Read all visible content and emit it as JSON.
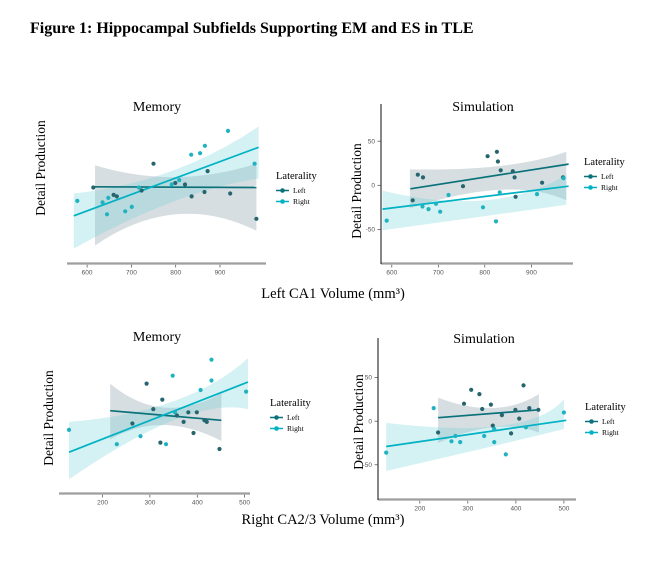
{
  "figure_title": "Figure 1: Hippocampal Subfields Supporting EM and ES in TLE",
  "xlabels": [
    "Left CA1 Volume (mm³)",
    "Right CA2/3 Volume (mm³)"
  ],
  "legend": {
    "title": "Laterality",
    "items": [
      {
        "label": "Left",
        "color": "#0b727b"
      },
      {
        "label": "Right",
        "color": "#00b2c4"
      }
    ]
  },
  "colors": {
    "x_axis_line": "#9e9e9e",
    "y_axis_line": "#222222",
    "tick_label": "#555555",
    "left_point": "#26656e",
    "left_line": "#0b727b",
    "left_band": "#7f98a1",
    "right_point": "#1fb2c1",
    "right_line": "#00b2c4",
    "right_band": "#7ad2da"
  },
  "chart_data": [
    {
      "type": "scatter",
      "title": "Memory",
      "ylabel": "Detail Production",
      "x_variable": "Left CA1 Volume (mm³)",
      "xlim": [
        557,
        997
      ],
      "ylim": [
        0,
        100
      ],
      "x_ticks": [
        600,
        700,
        800,
        900
      ],
      "y_ticks": [],
      "series": [
        {
          "name": "Left",
          "point_color": "#26656e",
          "line_color": "#0b727b",
          "band_color": "#7f98a1",
          "band_opacity": 0.32,
          "points": [
            [
              614,
              50
            ],
            [
              660,
              45
            ],
            [
              667,
              44
            ],
            [
              723,
              48
            ],
            [
              750,
              66
            ],
            [
              799,
              53
            ],
            [
              821,
              52
            ],
            [
              836,
              44
            ],
            [
              865,
              47
            ],
            [
              872,
              61
            ],
            [
              923,
              46
            ],
            [
              982,
              29
            ]
          ],
          "trend": [
            [
              614,
              50.5
            ],
            [
              982,
              50
            ]
          ],
          "band": [
            [
              618,
              65
            ],
            [
              799,
              57
            ],
            [
              982,
              66
            ],
            [
              982,
              21
            ],
            [
              799,
              32
            ],
            [
              618,
              11
            ]
          ]
        },
        {
          "name": "Right",
          "point_color": "#1fb2c1",
          "line_color": "#00b2c4",
          "band_color": "#7ad2da",
          "band_opacity": 0.32,
          "points": [
            [
              578,
              41
            ],
            [
              635,
              40
            ],
            [
              645,
              32
            ],
            [
              648,
              43
            ],
            [
              686,
              34
            ],
            [
              701,
              37
            ],
            [
              717,
              50
            ],
            [
              791,
              52
            ],
            [
              808,
              55
            ],
            [
              835,
              72
            ],
            [
              855,
              73
            ],
            [
              866,
              78
            ],
            [
              918,
              88
            ],
            [
              978,
              66
            ]
          ],
          "trend": [
            [
              570,
              31
            ],
            [
              987,
              77
            ]
          ],
          "band": [
            [
              570,
              46
            ],
            [
              790,
              61
            ],
            [
              987,
              91
            ],
            [
              987,
              56
            ],
            [
              790,
              40
            ],
            [
              570,
              9
            ]
          ]
        }
      ]
    },
    {
      "type": "scatter",
      "title": "Simulation",
      "ylabel": "Detail Production",
      "x_variable": "Left CA1 Volume (mm³)",
      "xlim": [
        579,
        983
      ],
      "ylim": [
        -87,
        82
      ],
      "x_ticks": [
        600,
        700,
        800,
        900
      ],
      "y_ticks": [
        50,
        0,
        -50
      ],
      "series": [
        {
          "name": "Left",
          "point_color": "#26656e",
          "line_color": "#0b727b",
          "band_color": "#7f98a1",
          "band_opacity": 0.32,
          "points": [
            [
              645,
              -17
            ],
            [
              656,
              12
            ],
            [
              667,
              9
            ],
            [
              753,
              -1
            ],
            [
              806,
              33
            ],
            [
              826,
              38
            ],
            [
              828,
              27
            ],
            [
              834,
              17
            ],
            [
              860,
              16
            ],
            [
              864,
              9
            ],
            [
              866,
              -13
            ],
            [
              923,
              3
            ],
            [
              968,
              9
            ]
          ],
          "trend": [
            [
              640,
              -4
            ],
            [
              980,
              24
            ]
          ],
          "band": [
            [
              639,
              18
            ],
            [
              833,
              22
            ],
            [
              975,
              38
            ],
            [
              975,
              -17
            ],
            [
              833,
              -5
            ],
            [
              639,
              -26
            ]
          ]
        },
        {
          "name": "Right",
          "point_color": "#1fb2c1",
          "line_color": "#00b2c4",
          "band_color": "#7ad2da",
          "band_opacity": 0.32,
          "points": [
            [
              589,
              -40
            ],
            [
              666,
              -24
            ],
            [
              679,
              -27
            ],
            [
              695,
              -21
            ],
            [
              704,
              -30
            ],
            [
              722,
              -11
            ],
            [
              796,
              -25
            ],
            [
              824,
              -41
            ],
            [
              832,
              -8
            ],
            [
              912,
              -10
            ],
            [
              969,
              8
            ]
          ],
          "trend": [
            [
              580,
              -27
            ],
            [
              980,
              -1
            ]
          ],
          "band": [
            [
              580,
              -6
            ],
            [
              800,
              -17
            ],
            [
              975,
              12
            ],
            [
              975,
              -22
            ],
            [
              800,
              -35
            ],
            [
              580,
              -51
            ]
          ]
        }
      ]
    },
    {
      "type": "scatter",
      "title": "Memory",
      "ylabel": "Detail Production",
      "x_variable": "Right CA2/3 Volume (mm³)",
      "xlim": [
        110,
        505
      ],
      "ylim": [
        4,
        95
      ],
      "x_ticks": [
        200,
        300,
        400,
        500
      ],
      "y_ticks": [],
      "series": [
        {
          "name": "Left",
          "point_color": "#26656e",
          "line_color": "#0b727b",
          "band_color": "#7f98a1",
          "band_opacity": 0.32,
          "points": [
            [
              263,
              47
            ],
            [
              293,
              72
            ],
            [
              307,
              56
            ],
            [
              322,
              35
            ],
            [
              326,
              62
            ],
            [
              357,
              52
            ],
            [
              371,
              48
            ],
            [
              381,
              54
            ],
            [
              392,
              41
            ],
            [
              399,
              54
            ],
            [
              415,
              49
            ],
            [
              420,
              48
            ],
            [
              447,
              31
            ]
          ],
          "trend": [
            [
              216,
              55
            ],
            [
              451,
              49
            ]
          ],
          "band": [
            [
              216,
              72
            ],
            [
              329,
              57
            ],
            [
              451,
              66
            ],
            [
              451,
              36
            ],
            [
              329,
              46
            ],
            [
              216,
              37
            ]
          ]
        },
        {
          "name": "Right",
          "point_color": "#1fb2c1",
          "line_color": "#00b2c4",
          "band_color": "#7ad2da",
          "band_opacity": 0.32,
          "points": [
            [
              129,
              43
            ],
            [
              230,
              34
            ],
            [
              280,
              39
            ],
            [
              334,
              34
            ],
            [
              348,
              77
            ],
            [
              353,
              54
            ],
            [
              407,
              68
            ],
            [
              430,
              87
            ],
            [
              430,
              74
            ],
            [
              503,
              67
            ]
          ],
          "trend": [
            [
              129,
              29
            ],
            [
              507,
              73
            ]
          ],
          "band": [
            [
              129,
              48
            ],
            [
              350,
              61
            ],
            [
              507,
              88
            ],
            [
              507,
              56
            ],
            [
              350,
              49
            ],
            [
              129,
              12
            ]
          ]
        }
      ]
    },
    {
      "type": "scatter",
      "title": "Simulation",
      "ylabel": "Detail Production",
      "x_variable": "Right CA2/3 Volume (mm³)",
      "xlim": [
        115,
        519
      ],
      "ylim": [
        -88,
        85
      ],
      "x_ticks": [
        200,
        300,
        400,
        500
      ],
      "y_ticks": [
        50,
        0,
        -50
      ],
      "series": [
        {
          "name": "Left",
          "point_color": "#26656e",
          "line_color": "#0b727b",
          "band_color": "#7f98a1",
          "band_opacity": 0.32,
          "points": [
            [
              238,
              -13
            ],
            [
              292,
              20
            ],
            [
              307,
              36
            ],
            [
              324,
              31
            ],
            [
              330,
              14
            ],
            [
              348,
              19
            ],
            [
              352,
              -5
            ],
            [
              371,
              7
            ],
            [
              390,
              -14
            ],
            [
              399,
              13
            ],
            [
              407,
              3
            ],
            [
              416,
              41
            ],
            [
              428,
              15
            ],
            [
              447,
              13
            ]
          ],
          "trend": [
            [
              238,
              4
            ],
            [
              448,
              13
            ]
          ],
          "band": [
            [
              238,
              27
            ],
            [
              352,
              15
            ],
            [
              448,
              31
            ],
            [
              448,
              -13
            ],
            [
              352,
              -7
            ],
            [
              238,
              -25
            ]
          ]
        },
        {
          "name": "Right",
          "point_color": "#1fb2c1",
          "line_color": "#00b2c4",
          "band_color": "#7ad2da",
          "band_opacity": 0.32,
          "points": [
            [
              130,
              -36
            ],
            [
              229,
              15
            ],
            [
              266,
              -23
            ],
            [
              274,
              -17
            ],
            [
              284,
              -24
            ],
            [
              334,
              -17
            ],
            [
              355,
              -9
            ],
            [
              355,
              -24
            ],
            [
              379,
              -38
            ],
            [
              421,
              -7
            ],
            [
              500,
              10
            ]
          ],
          "trend": [
            [
              130,
              -29
            ],
            [
              505,
              1
            ]
          ],
          "band": [
            [
              130,
              -2
            ],
            [
              372,
              -5
            ],
            [
              500,
              25
            ],
            [
              500,
              -9
            ],
            [
              372,
              -26
            ],
            [
              130,
              -57
            ]
          ]
        }
      ]
    }
  ]
}
